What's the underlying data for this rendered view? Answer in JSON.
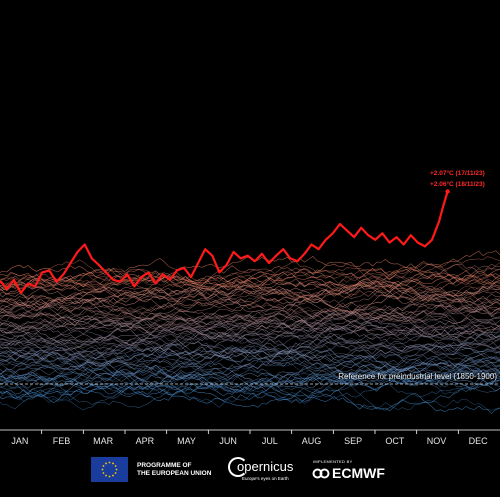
{
  "chart_data": {
    "type": "line",
    "title": "",
    "xlabel": "",
    "ylabel": "",
    "x_categories": [
      "JAN",
      "FEB",
      "MAR",
      "APR",
      "MAY",
      "JUN",
      "JUL",
      "AUG",
      "SEP",
      "OCT",
      "NOV",
      "DEC"
    ],
    "reference_line": {
      "label": "Reference for preindustrial level (1850-1900)",
      "style": "dashed",
      "color": "#cccccc"
    },
    "background": "#000000",
    "background_series": {
      "description_source": "ensemble of past years daily global temperature anomaly traces",
      "color_cold": "#3f8fd6",
      "color_warm": "#f08060"
    },
    "highlight_series": {
      "color": "#ff1a1a",
      "values": [
        [
          1,
          1.05
        ],
        [
          6,
          1.1
        ],
        [
          10,
          1.02
        ],
        [
          15,
          1.12
        ],
        [
          20,
          0.98
        ],
        [
          25,
          1.08
        ],
        [
          30,
          1.05
        ],
        [
          35,
          1.2
        ],
        [
          40,
          1.22
        ],
        [
          45,
          1.1
        ],
        [
          50,
          1.18
        ],
        [
          55,
          1.3
        ],
        [
          60,
          1.42
        ],
        [
          65,
          1.5
        ],
        [
          70,
          1.35
        ],
        [
          75,
          1.28
        ],
        [
          80,
          1.2
        ],
        [
          85,
          1.12
        ],
        [
          90,
          1.1
        ],
        [
          95,
          1.18
        ],
        [
          100,
          1.05
        ],
        [
          105,
          1.15
        ],
        [
          110,
          1.2
        ],
        [
          115,
          1.08
        ],
        [
          120,
          1.18
        ],
        [
          125,
          1.12
        ],
        [
          130,
          1.22
        ],
        [
          135,
          1.25
        ],
        [
          140,
          1.15
        ],
        [
          145,
          1.3
        ],
        [
          150,
          1.45
        ],
        [
          155,
          1.38
        ],
        [
          160,
          1.2
        ],
        [
          165,
          1.28
        ],
        [
          170,
          1.42
        ],
        [
          175,
          1.35
        ],
        [
          180,
          1.38
        ],
        [
          185,
          1.32
        ],
        [
          190,
          1.4
        ],
        [
          195,
          1.3
        ],
        [
          200,
          1.38
        ],
        [
          205,
          1.45
        ],
        [
          210,
          1.35
        ],
        [
          215,
          1.32
        ],
        [
          220,
          1.4
        ],
        [
          225,
          1.5
        ],
        [
          230,
          1.45
        ],
        [
          235,
          1.55
        ],
        [
          240,
          1.62
        ],
        [
          245,
          1.72
        ],
        [
          250,
          1.65
        ],
        [
          255,
          1.58
        ],
        [
          260,
          1.68
        ],
        [
          265,
          1.6
        ],
        [
          270,
          1.55
        ],
        [
          275,
          1.62
        ],
        [
          280,
          1.52
        ],
        [
          285,
          1.58
        ],
        [
          290,
          1.5
        ],
        [
          295,
          1.6
        ],
        [
          300,
          1.52
        ],
        [
          305,
          1.48
        ],
        [
          310,
          1.55
        ],
        [
          315,
          1.75
        ],
        [
          318,
          1.92
        ],
        [
          321,
          2.07
        ],
        [
          322,
          2.06
        ]
      ]
    },
    "annotations": [
      "+2.07°C (17/11/23)",
      "+2.06°C (18/11/23)"
    ]
  },
  "footer": {
    "eu_line1": "PROGRAMME OF",
    "eu_line2": "THE EUROPEAN UNION",
    "copernicus_name": "opernicus",
    "copernicus_tag": "Europe's eyes on Earth",
    "ecmwf_implemented": "IMPLEMENTED BY",
    "ecmwf_name": "ECMWF"
  }
}
